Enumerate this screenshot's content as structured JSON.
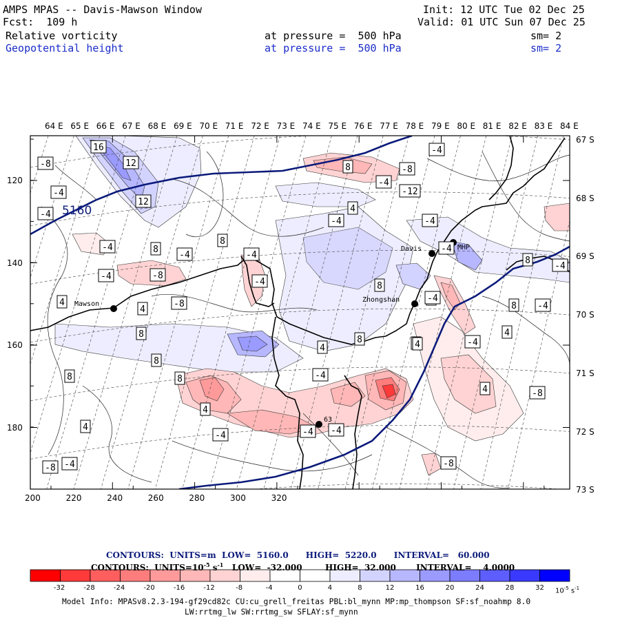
{
  "header": {
    "title": "AMPS MPAS -- Davis-Mawson Window",
    "fcst": "Fcst:  109 h",
    "init": "Init: 12 UTC Tue 02 Dec 25",
    "valid": "Valid: 01 UTC Sun 07 Dec 25",
    "field1_name": "Relative vorticity",
    "field1_level": "at pressure =  500 hPa",
    "field1_sm": "sm= 2",
    "field2_name": "Geopotential height",
    "field2_level": "at pressure =  500 hPa",
    "field2_sm": "sm= 2"
  },
  "axes": {
    "top_lon": [
      "64 E",
      "65 E",
      "66 E",
      "67 E",
      "68 E",
      "69 E",
      "70 E",
      "71 E",
      "72 E",
      "73 E",
      "74 E",
      "75 E",
      "76 E",
      "77 E",
      "78 E",
      "79 E",
      "80 E",
      "81 E",
      "82 E",
      "83 E",
      "84 E"
    ],
    "right_lat": [
      "67 S",
      "68 S",
      "69 S",
      "70 S",
      "71 S",
      "72 S",
      "73 S"
    ],
    "bottom_x": [
      "200",
      "220",
      "240",
      "260",
      "280",
      "300",
      "320"
    ],
    "left_y": [
      "120",
      "140",
      "160",
      "180"
    ]
  },
  "places": [
    {
      "name": "Mawson"
    },
    {
      "name": "Davis"
    },
    {
      "name": "Zhongshan"
    },
    {
      "name": "MHP"
    },
    {
      "name": "63"
    }
  ],
  "height_label": "5160",
  "contour_labels": [
    "16",
    "12",
    "12",
    "-8",
    "-4",
    "-4",
    "-4",
    "8",
    "-4",
    "8",
    "-4",
    "-8",
    "-4",
    "-8",
    "4",
    "4",
    "-4",
    "8",
    "8",
    "8",
    "4",
    "-8",
    "-4",
    "-4",
    "8",
    "-4",
    "-12",
    "-8",
    "-4",
    "-4",
    "4",
    "4",
    "8",
    "8",
    "4",
    "8",
    "-4",
    "8",
    "8",
    "4",
    "4",
    "-4",
    "-8",
    "-4",
    "8",
    "4",
    "-4",
    "-4",
    "-4",
    "-8",
    "-4",
    "-4",
    "4",
    "4",
    "-4"
  ],
  "footer": {
    "contours1": "CONTOURS:  UNITS=m  LOW=  5160.0      HIGH=  5220.0      INTERVAL=   60.000",
    "contours2_a": "CONTOURS:  UNITS=10",
    "contours2_b": "-5",
    "contours2_c": " s",
    "contours2_d": "-1",
    "contours2_e": "   LOW=  -32.000        HIGH=  32.000       INTERVAL=    4.0000",
    "colorbar_ticks": [
      "-32",
      "-28",
      "-24",
      "-20",
      "-16",
      "-12",
      "-8",
      "-4",
      "0",
      "4",
      "8",
      "12",
      "16",
      "20",
      "24",
      "28",
      "32"
    ],
    "colorbar_unit_a": "10",
    "colorbar_unit_b": "-5",
    "colorbar_unit_c": " s",
    "colorbar_unit_d": "-1",
    "model_info1": "Model Info: MPASv8.2.3-194-gf29cd82c CU:cu_grell_freitas PBL:bl_mynn MP:mp_thompson SF:sf_noahmp 8.0",
    "model_info2": "LW:rrtmg_lw SW:rrtmg_sw SFLAY:sf_mynn"
  },
  "colors": {
    "colorbar": [
      "#ff0000",
      "#ff3a3a",
      "#ff5e5e",
      "#ff7c7c",
      "#ff9a9a",
      "#ffb7b7",
      "#ffd3d3",
      "#ffeded",
      "#ffffff",
      "#ffffff",
      "#ededff",
      "#d3d3ff",
      "#b7b7ff",
      "#9a9aff",
      "#7c7cff",
      "#5e5eff",
      "#3a3aff",
      "#0000ff"
    ],
    "height_contour": "#0b1a7a",
    "text_blue": "#1a2cc8"
  }
}
